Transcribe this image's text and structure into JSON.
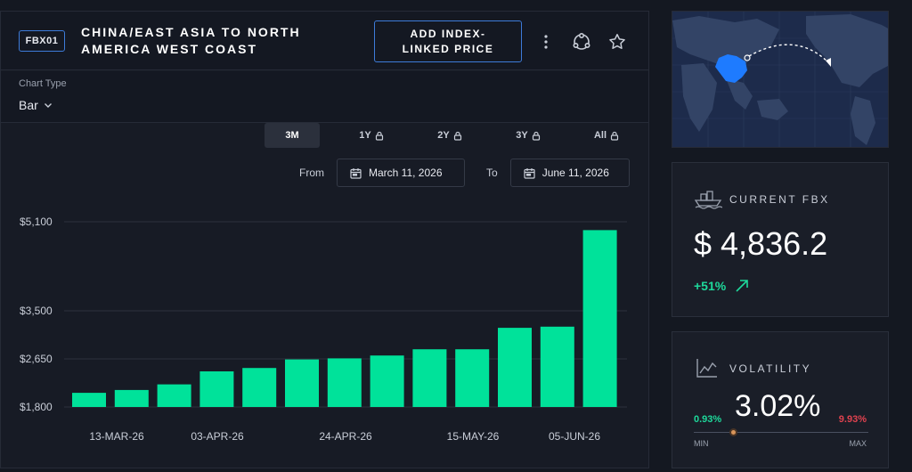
{
  "header": {
    "code": "FBX01",
    "title": "CHINA/EAST ASIA TO NORTH AMERICA WEST COAST",
    "add_button": "ADD INDEX-LINKED PRICE",
    "icons": [
      "more-vertical-icon",
      "share-icon",
      "star-icon"
    ]
  },
  "toolbar": {
    "chart_type_label": "Chart Type",
    "chart_type_value": "Bar"
  },
  "periods": [
    {
      "label": "3M",
      "active": true,
      "locked": false
    },
    {
      "label": "1Y",
      "active": false,
      "locked": true
    },
    {
      "label": "2Y",
      "active": false,
      "locked": true
    },
    {
      "label": "3Y",
      "active": false,
      "locked": true
    },
    {
      "label": "All",
      "active": false,
      "locked": true
    }
  ],
  "range": {
    "from_label": "From",
    "from_date": "March 11, 2026",
    "to_label": "To",
    "to_date": "June 11, 2026"
  },
  "chart_data": {
    "type": "bar",
    "x_tick_labels": [
      "13-MAR-26",
      "03-APR-26",
      "24-APR-26",
      "15-MAY-26",
      "05-JUN-26"
    ],
    "y_tick_labels": [
      "$5,100",
      "$3,500",
      "$2,650",
      "$1,800"
    ],
    "y_ticks": [
      5100,
      3500,
      2650,
      1800
    ],
    "y_axis_type": "piecewise-linear",
    "ylim": [
      1800,
      5100
    ],
    "values": [
      2050,
      2100,
      2200,
      2430,
      2490,
      2640,
      2660,
      2710,
      2820,
      2820,
      3200,
      3220,
      4950
    ],
    "bar_color": "#00e29a",
    "grid": true
  },
  "current": {
    "title": "CURRENT FBX",
    "value": "$ 4,836.2",
    "change": "+51%",
    "icon": "ship-icon"
  },
  "volatility": {
    "title": "VOLATILITY",
    "value": "3.02%",
    "min_value": "0.93%",
    "max_value": "9.93%",
    "min_label": "MIN",
    "max_label": "MAX",
    "position": 0.23,
    "icon": "line-chart-icon"
  }
}
